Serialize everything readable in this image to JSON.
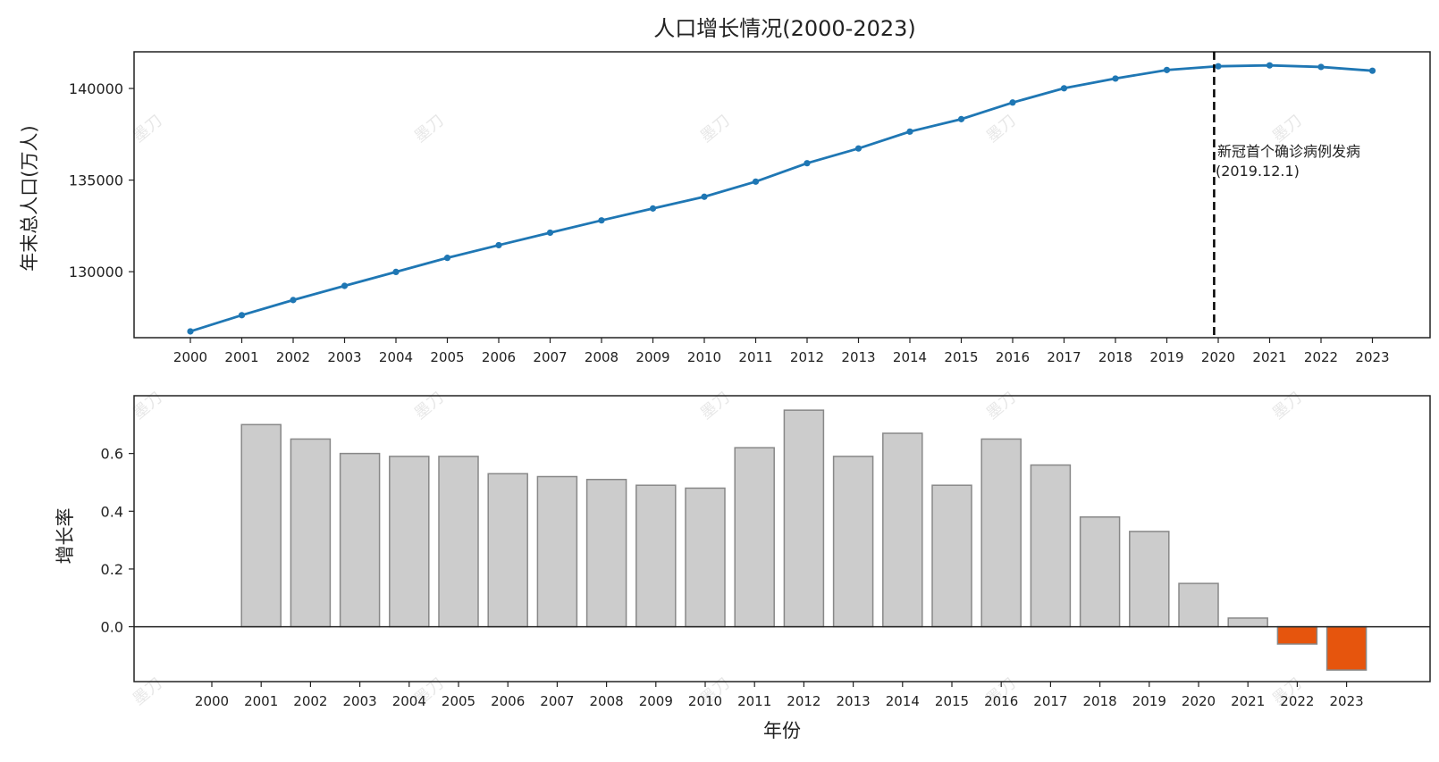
{
  "chart_data": [
    {
      "type": "line",
      "title": "人口增长情况(2000-2023)",
      "xlabel": "",
      "ylabel": "年末总人口(万人)",
      "ylim": [
        126400,
        142000
      ],
      "yticks": [
        130000,
        135000,
        140000
      ],
      "x": [
        "2000",
        "2001",
        "2002",
        "2003",
        "2004",
        "2005",
        "2006",
        "2007",
        "2008",
        "2009",
        "2010",
        "2011",
        "2012",
        "2013",
        "2014",
        "2015",
        "2016",
        "2017",
        "2018",
        "2019",
        "2020",
        "2021",
        "2022",
        "2023"
      ],
      "series": [
        {
          "color": "#1f77b4",
          "values": [
            126743,
            127627,
            128453,
            129227,
            129988,
            130756,
            131448,
            132129,
            132802,
            133450,
            134091,
            134916,
            135922,
            136726,
            137646,
            138326,
            139232,
            140011,
            140541,
            141008,
            141212,
            141260,
            141175,
            140967
          ]
        }
      ],
      "marker_line": {
        "x": "2019.12.1",
        "style": "dashed",
        "color": "#000000"
      },
      "annotation": {
        "line1": "新冠首个确诊病例发病",
        "line2": "(2019.12.1)"
      },
      "grid": false
    },
    {
      "type": "bar",
      "xlabel": "年份",
      "ylabel": "增长率",
      "ylim": [
        -0.19,
        0.8
      ],
      "yticks": [
        "0.0",
        "0.2",
        "0.4",
        "0.6"
      ],
      "categories": [
        "2000",
        "2001",
        "2002",
        "2003",
        "2004",
        "2005",
        "2006",
        "2007",
        "2008",
        "2009",
        "2010",
        "2011",
        "2012",
        "2013",
        "2014",
        "2015",
        "2016",
        "2017",
        "2018",
        "2019",
        "2020",
        "2021",
        "2022",
        "2023"
      ],
      "values": [
        0,
        0.7,
        0.65,
        0.6,
        0.59,
        0.59,
        0.53,
        0.52,
        0.51,
        0.49,
        0.48,
        0.62,
        0.75,
        0.59,
        0.67,
        0.49,
        0.65,
        0.56,
        0.38,
        0.33,
        0.15,
        0.03,
        -0.06,
        -0.15
      ],
      "colors": {
        "positive": "#cccccc",
        "negative": "#e6550d",
        "edge": "#888888"
      },
      "grid": false
    }
  ],
  "watermark": {
    "text": "墨刀"
  }
}
